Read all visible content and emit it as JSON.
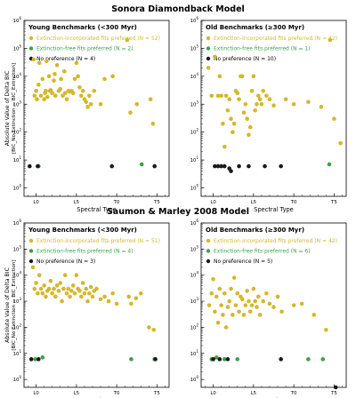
{
  "figure": {
    "sections": [
      {
        "title": "Sonora Diamondback Model"
      },
      {
        "title": "Saumon & Marley 2008 Model"
      }
    ]
  },
  "colors": {
    "extinction": "#d4b72c",
    "free": "#3aa34a",
    "none": "#1a1a1a"
  },
  "chart_data": [
    {
      "type": "scatter",
      "section": "Sonora Diamondback Model",
      "title": "Young Benchmarks (<300 Myr)",
      "xlabel": "Spectral Type",
      "ylabel": "Absolute Value of Delta BIC",
      "ylabel2": "[BIC_No Extinction − BIC_Extinction]",
      "yscale": "log",
      "ylim": [
        0.5,
        1000000
      ],
      "xlim": [
        -1.5,
        16.5
      ],
      "xticks": [
        0,
        5,
        10,
        15
      ],
      "xticklabels": [
        "L0",
        "L5",
        "T0",
        "T5"
      ],
      "yticklabels": [
        "10⁰",
        "10¹",
        "10²",
        "10³",
        "10⁴",
        "10⁵",
        "10⁶"
      ],
      "series": [
        {
          "name": "Extinction-incorporated fits preferred (N = 52)",
          "color_key": "extinction",
          "points": [
            [
              -0.3,
              40000
            ],
            [
              -0.2,
              2000
            ],
            [
              0,
              3000
            ],
            [
              0.1,
              1500
            ],
            [
              0.3,
              5000
            ],
            [
              0.4,
              30000
            ],
            [
              0.6,
              2000
            ],
            [
              0.8,
              8000
            ],
            [
              1,
              1500
            ],
            [
              1.1,
              2500
            ],
            [
              1.2,
              3000
            ],
            [
              1.3,
              35000
            ],
            [
              1.4,
              1800
            ],
            [
              1.6,
              10000
            ],
            [
              1.7,
              3000
            ],
            [
              1.8,
              3200
            ],
            [
              2,
              2500
            ],
            [
              2.2,
              7000
            ],
            [
              2.3,
              12000
            ],
            [
              2.4,
              2000
            ],
            [
              2.6,
              25000
            ],
            [
              2.8,
              3000
            ],
            [
              3,
              3500
            ],
            [
              3.1,
              8000
            ],
            [
              3.3,
              2000
            ],
            [
              3.5,
              15000
            ],
            [
              3.6,
              2500
            ],
            [
              3.8,
              1500
            ],
            [
              4,
              3000
            ],
            [
              4.2,
              2800
            ],
            [
              4.4,
              3000
            ],
            [
              4.6,
              2500
            ],
            [
              4.8,
              8000
            ],
            [
              5,
              30000
            ],
            [
              5.2,
              10000
            ],
            [
              5.4,
              4000
            ],
            [
              5.6,
              2000
            ],
            [
              5.8,
              3000
            ],
            [
              6,
              1500
            ],
            [
              6.2,
              1200
            ],
            [
              6.4,
              800
            ],
            [
              6.6,
              2000
            ],
            [
              6.8,
              1000
            ],
            [
              7.2,
              3000
            ],
            [
              8.5,
              8000
            ],
            [
              8,
              1000
            ],
            [
              9.5,
              10000
            ],
            [
              11.3,
              200000
            ],
            [
              11.7,
              500
            ],
            [
              12.5,
              1000
            ],
            [
              14.5,
              200
            ],
            [
              14.2,
              1500
            ]
          ]
        },
        {
          "name": "Extinction-free fits preferred (N = 2)",
          "color_key": "free",
          "points": [
            [
              0.3,
              6
            ],
            [
              13.1,
              7
            ]
          ]
        },
        {
          "name": "No preference (N = 4)",
          "color_key": "none",
          "points": [
            [
              -0.8,
              6
            ],
            [
              0.2,
              6
            ],
            [
              9.4,
              6
            ],
            [
              14.7,
              6
            ]
          ]
        }
      ]
    },
    {
      "type": "scatter",
      "section": "Sonora Diamondback Model",
      "title": "Old Benchmarks (≥300 Myr)",
      "xlabel": "Spectral Type",
      "yscale": "log",
      "ylim": [
        0.5,
        1000000
      ],
      "xlim": [
        -1.5,
        16.5
      ],
      "xticks": [
        0,
        5,
        10,
        15
      ],
      "xticklabels": [
        "L0",
        "L5",
        "T0",
        "T5"
      ],
      "yticklabels": [
        "10⁰",
        "10¹",
        "10²",
        "10³",
        "10⁴",
        "10⁵",
        "10⁶"
      ],
      "series": [
        {
          "name": "Extinction-incorporated fits preferred (N = 42)",
          "color_key": "extinction",
          "points": [
            [
              -0.6,
              20000
            ],
            [
              -0.2,
              2000
            ],
            [
              0.2,
              50000
            ],
            [
              0.6,
              2000
            ],
            [
              0.8,
              10000
            ],
            [
              1,
              2000
            ],
            [
              1.2,
              200
            ],
            [
              1.4,
              30
            ],
            [
              1.6,
              2000
            ],
            [
              1.8,
              600
            ],
            [
              2,
              1500
            ],
            [
              2.2,
              300
            ],
            [
              2.4,
              100
            ],
            [
              2.6,
              200
            ],
            [
              2.8,
              3000
            ],
            [
              3,
              2500
            ],
            [
              3.2,
              1500
            ],
            [
              3.4,
              10000
            ],
            [
              3.6,
              10000
            ],
            [
              3.8,
              500
            ],
            [
              4,
              1000
            ],
            [
              4.2,
              300
            ],
            [
              4.4,
              80
            ],
            [
              4.6,
              150
            ],
            [
              4.8,
              3000
            ],
            [
              5,
              10000
            ],
            [
              5.2,
              600
            ],
            [
              5.4,
              1000
            ],
            [
              5.6,
              2000
            ],
            [
              5.8,
              1500
            ],
            [
              6,
              1000
            ],
            [
              6.2,
              3000
            ],
            [
              6.6,
              2000
            ],
            [
              7,
              1500
            ],
            [
              7.5,
              900
            ],
            [
              9,
              1500
            ],
            [
              10,
              1000
            ],
            [
              11.8,
              1200
            ],
            [
              13.4,
              800
            ],
            [
              14.5,
              200000
            ],
            [
              15,
              300
            ],
            [
              15.8,
              40
            ]
          ]
        },
        {
          "name": "Extinction-free fits preferred (N = 1)",
          "color_key": "free",
          "points": [
            [
              14.4,
              7
            ]
          ]
        },
        {
          "name": "No preference (N = 10)",
          "color_key": "none",
          "points": [
            [
              0.2,
              6
            ],
            [
              0.6,
              6
            ],
            [
              1,
              6
            ],
            [
              1.4,
              6
            ],
            [
              2,
              5
            ],
            [
              2.2,
              4
            ],
            [
              3.2,
              6
            ],
            [
              4.4,
              6
            ],
            [
              6.4,
              6
            ],
            [
              8.4,
              6
            ]
          ]
        }
      ]
    },
    {
      "type": "scatter",
      "section": "Saumon & Marley 2008 Model",
      "title": "Young Benchmarks (<300 Myr)",
      "xlabel": "Spectral Type",
      "ylabel": "Absolute Value of Delta BIC",
      "ylabel2": "[BIC_No Extinction − BIC_Extinction]",
      "yscale": "log",
      "ylim": [
        0.5,
        1000000
      ],
      "xlim": [
        -1.5,
        16.5
      ],
      "xticks": [
        0,
        5,
        10,
        15
      ],
      "xticklabels": [
        "L0",
        "L5",
        "T0",
        "T5"
      ],
      "yticklabels": [
        "10⁰",
        "10¹",
        "10²",
        "10³",
        "10⁴",
        "10⁵",
        "10⁶"
      ],
      "series": [
        {
          "name": "Extinction-incorporated fits preferred (N = 51)",
          "color_key": "extinction",
          "points": [
            [
              -0.4,
              20000
            ],
            [
              -0.2,
              3000
            ],
            [
              0,
              5000
            ],
            [
              0.2,
              2000
            ],
            [
              0.4,
              10000
            ],
            [
              0.6,
              3000
            ],
            [
              0.8,
              2000
            ],
            [
              1,
              4000
            ],
            [
              1.2,
              1500
            ],
            [
              1.4,
              2500
            ],
            [
              1.6,
              3000
            ],
            [
              1.8,
              6000
            ],
            [
              2,
              2000
            ],
            [
              2.2,
              3000
            ],
            [
              2.4,
              1500
            ],
            [
              2.6,
              4000
            ],
            [
              2.8,
              2500
            ],
            [
              3,
              5000
            ],
            [
              3.2,
              1000
            ],
            [
              3.4,
              3000
            ],
            [
              3.6,
              10000
            ],
            [
              3.8,
              2000
            ],
            [
              4,
              3000
            ],
            [
              4.2,
              1500
            ],
            [
              4.4,
              2500
            ],
            [
              4.6,
              4000
            ],
            [
              4.8,
              2000
            ],
            [
              5,
              10000
            ],
            [
              5.2,
              3000
            ],
            [
              5.4,
              2500
            ],
            [
              5.6,
              1500
            ],
            [
              5.8,
              5000
            ],
            [
              6,
              2000
            ],
            [
              6.2,
              3000
            ],
            [
              6.4,
              1000
            ],
            [
              6.6,
              2000
            ],
            [
              6.8,
              3500
            ],
            [
              7,
              1500
            ],
            [
              7.2,
              2500
            ],
            [
              7.5,
              3000
            ],
            [
              8,
              1200
            ],
            [
              8.5,
              1500
            ],
            [
              9,
              1000
            ],
            [
              9.5,
              2000
            ],
            [
              11.5,
              1500
            ],
            [
              11.8,
              800
            ],
            [
              12.4,
              1300
            ],
            [
              14,
              100
            ],
            [
              14.6,
              80
            ],
            [
              13,
              2000
            ],
            [
              10,
              800
            ]
          ]
        },
        {
          "name": "Extinction-free fits preferred (N = 4)",
          "color_key": "free",
          "points": [
            [
              -0.1,
              6
            ],
            [
              0.8,
              7
            ],
            [
              11.8,
              6
            ],
            [
              14.7,
              6
            ]
          ]
        },
        {
          "name": "No preference (N = 3)",
          "color_key": "none",
          "points": [
            [
              -0.6,
              6
            ],
            [
              0.3,
              6
            ],
            [
              14.8,
              6
            ]
          ]
        }
      ]
    },
    {
      "type": "scatter",
      "section": "Saumon & Marley 2008 Model",
      "title": "Old Benchmarks (≥300 Myr)",
      "xlabel": "Spectral Type",
      "yscale": "log",
      "ylim": [
        0.5,
        1000000
      ],
      "xlim": [
        -1.5,
        16.5
      ],
      "xticks": [
        0,
        5,
        10,
        15
      ],
      "xticklabels": [
        "L0",
        "L5",
        "T0",
        "T5"
      ],
      "yticklabels": [
        "10⁰",
        "10¹",
        "10²",
        "10³",
        "10⁴",
        "10⁵",
        "10⁶"
      ],
      "series": [
        {
          "name": "Extinction-incorporated fits preferred (N = 42)",
          "color_key": "extinction",
          "points": [
            [
              -0.5,
              700
            ],
            [
              -0.2,
              2000
            ],
            [
              0,
              7000
            ],
            [
              0.2,
              400
            ],
            [
              0.4,
              1500
            ],
            [
              0.6,
              150
            ],
            [
              0.8,
              3000
            ],
            [
              1,
              700
            ],
            [
              1.2,
              300
            ],
            [
              1.4,
              2000
            ],
            [
              1.6,
              100
            ],
            [
              1.8,
              600
            ],
            [
              2,
              1000
            ],
            [
              2.2,
              3000
            ],
            [
              2.4,
              300
            ],
            [
              2.6,
              8000
            ],
            [
              2.8,
              700
            ],
            [
              3,
              2000
            ],
            [
              3.2,
              400
            ],
            [
              3.4,
              1500
            ],
            [
              3.6,
              1200
            ],
            [
              3.8,
              300
            ],
            [
              4,
              700
            ],
            [
              4.2,
              2500
            ],
            [
              4.4,
              1000
            ],
            [
              4.6,
              400
            ],
            [
              4.8,
              700
            ],
            [
              5,
              3000
            ],
            [
              5.2,
              1000
            ],
            [
              5.4,
              600
            ],
            [
              5.6,
              1500
            ],
            [
              5.8,
              300
            ],
            [
              6.2,
              1000
            ],
            [
              6.6,
              2000
            ],
            [
              7,
              800
            ],
            [
              7.5,
              600
            ],
            [
              8,
              1500
            ],
            [
              8.5,
              400
            ],
            [
              10,
              700
            ],
            [
              11,
              800
            ],
            [
              12.5,
              300
            ],
            [
              14,
              80
            ]
          ]
        },
        {
          "name": "Extinction-free fits preferred (N = 6)",
          "color_key": "free",
          "points": [
            [
              -0.2,
              6
            ],
            [
              0.4,
              7
            ],
            [
              1.4,
              6
            ],
            [
              3,
              6
            ],
            [
              11.8,
              6
            ],
            [
              13.6,
              6
            ]
          ]
        },
        {
          "name": "No preference (N = 5)",
          "color_key": "none",
          "points": [
            [
              0,
              6
            ],
            [
              0.8,
              6
            ],
            [
              1.8,
              6
            ],
            [
              8.4,
              6
            ],
            [
              15.2,
              0.5
            ]
          ]
        }
      ]
    }
  ]
}
